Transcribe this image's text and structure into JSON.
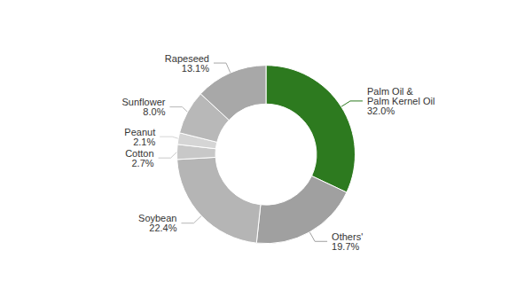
{
  "chart_data": {
    "type": "pie",
    "categories": [
      "Palm Oil &\nPalm Kernel Oil",
      "Others'",
      "Soybean",
      "Cotton",
      "Peanut",
      "Sunflower",
      "Rapeseed"
    ],
    "values": [
      32.0,
      19.7,
      22.4,
      2.7,
      2.1,
      8.0,
      13.1
    ],
    "value_labels": [
      "32.0%",
      "19.7%",
      "22.4%",
      "2.7%",
      "2.1%",
      "8.0%",
      "13.1%"
    ],
    "colors": [
      "#2d7a1f",
      "#a0a0a0",
      "#b5b5b5",
      "#c8c8c8",
      "#d5d5d5",
      "#b8b8b8",
      "#a8a8a8"
    ],
    "data_labels": true
  }
}
